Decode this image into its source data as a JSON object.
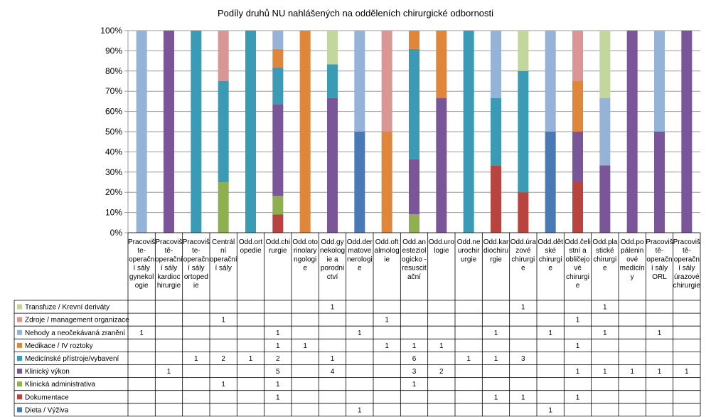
{
  "chart_data": {
    "type": "stacked-bar-100",
    "title": "Podíly druhů NU nahlášených na odděleních chirurgické odbornosti",
    "ylim": [
      0,
      1
    ],
    "y_ticks": [
      "0%",
      "10%",
      "20%",
      "30%",
      "40%",
      "50%",
      "60%",
      "70%",
      "80%",
      "90%",
      "100%"
    ],
    "grid": true,
    "legend": "data table below chart",
    "categories": [
      "Pracoviště-operační sály gynekologie",
      "Pracoviště-operační sály kardiochirurgie",
      "Pracoviště-operační sály ortopedie",
      "Centrální operační sály",
      "Odd.ortopedie",
      "Odd.chirurgie",
      "Odd.otorinolaryngologie",
      "Odd.gynekologie a porodnictví",
      "Odd.dermatovenerologie",
      "Odd.oftalmologie",
      "Odd.anesteziologicko-resuscitační",
      "Odd.urologie",
      "Odd.neurochirurgie",
      "Odd.kardiochirurgie",
      "Odd.úrazové chirurgie",
      "Odd.dětské chirurgie",
      "Odd.čelistní a obličejové chirurgie",
      "Odd.plastické chirurgie",
      "Odd.popáleninové medicíny",
      "Pracoviště-operační sály ORL",
      "Pracoviště-operační sály úrazové chirurgie"
    ],
    "category_lines": [
      [
        "Pracoviš",
        "te-",
        "operačn",
        "í sály",
        "gynekol",
        "ogie"
      ],
      [
        "Pracoviš",
        "tě-",
        "operační",
        "í sály",
        "kardioc",
        "hirurgie"
      ],
      [
        "Pracoviš",
        "te-",
        "operačn",
        "í sály",
        "ortoped",
        "ie"
      ],
      [
        "Centrál",
        "ní",
        "operační",
        "í sály"
      ],
      [
        "Odd.ort",
        "opedie"
      ],
      [
        "Odd.chi",
        "rurgie"
      ],
      [
        "Odd.oto",
        "rinolary",
        "ngologi",
        "e"
      ],
      [
        "Odd.gy",
        "nekolog",
        "ie a",
        "porodni",
        "ctví"
      ],
      [
        "Odd.der",
        "matove",
        "nerologi",
        "e"
      ],
      [
        "Odd.oft",
        "almolog",
        "ie"
      ],
      [
        "Odd.an",
        "esteziol",
        "ogicko -",
        "resuscit",
        "ační"
      ],
      [
        "Odd.uro",
        "logie"
      ],
      [
        "Odd.ne",
        "urochir",
        "urgie"
      ],
      [
        "Odd.kar",
        "diochiru",
        "rgie"
      ],
      [
        "Odd.úra",
        "zové",
        "chirurgi",
        "e"
      ],
      [
        "Odd.dět",
        "ské",
        "chirurgi",
        "e"
      ],
      [
        "Odd.čeli",
        "stní a",
        "obličejo",
        "vé",
        "chirurgi",
        "e"
      ],
      [
        "Odd.pla",
        "stické",
        "chirurgi",
        "e"
      ],
      [
        "Odd.po",
        "pálenin",
        "ové",
        "medicín",
        "y"
      ],
      [
        "Pracoviš",
        "tě-",
        "operačn",
        "í sály",
        "ORL"
      ],
      [
        "Pracoviš",
        "tě-",
        "operačn",
        "í sály",
        "úrazové",
        "chirurgie"
      ]
    ],
    "series": [
      {
        "name": "Transfuze / Krevní deriváty",
        "color": "#c3d69b",
        "values": [
          0,
          0,
          0,
          0,
          0,
          0,
          0,
          1,
          0,
          0,
          0,
          0,
          0,
          0,
          1,
          0,
          0,
          1,
          0,
          0,
          0
        ]
      },
      {
        "name": "Zdroje / management organizace",
        "color": "#d99694",
        "values": [
          0,
          0,
          0,
          1,
          0,
          0,
          0,
          0,
          0,
          1,
          0,
          0,
          0,
          0,
          0,
          0,
          1,
          0,
          0,
          0,
          0
        ]
      },
      {
        "name": "Nehody a neočekávaná zranění",
        "color": "#95b3d7",
        "values": [
          1,
          0,
          0,
          0,
          0,
          1,
          0,
          0,
          1,
          0,
          0,
          0,
          0,
          1,
          0,
          1,
          0,
          1,
          0,
          1,
          0
        ]
      },
      {
        "name": "Medikace / IV roztoky",
        "color": "#e0863a",
        "values": [
          0,
          0,
          0,
          0,
          0,
          1,
          1,
          0,
          0,
          1,
          1,
          1,
          0,
          0,
          0,
          0,
          1,
          0,
          0,
          0,
          0
        ]
      },
      {
        "name": "Medicínské přístroje/vybavení",
        "color": "#3b9bb5",
        "values": [
          0,
          0,
          1,
          2,
          1,
          2,
          0,
          1,
          0,
          0,
          6,
          0,
          1,
          1,
          3,
          0,
          0,
          0,
          0,
          0,
          0
        ]
      },
      {
        "name": "Klinický výkon",
        "color": "#7a5598",
        "values": [
          0,
          1,
          0,
          0,
          0,
          5,
          0,
          4,
          0,
          0,
          3,
          2,
          0,
          0,
          0,
          0,
          1,
          1,
          1,
          1,
          1
        ]
      },
      {
        "name": "Klinická administrativa",
        "color": "#8fb04f",
        "values": [
          0,
          0,
          0,
          1,
          0,
          1,
          0,
          0,
          0,
          0,
          1,
          0,
          0,
          0,
          0,
          0,
          0,
          0,
          0,
          0,
          0
        ]
      },
      {
        "name": "Dokumentace",
        "color": "#b8433f",
        "values": [
          0,
          0,
          0,
          0,
          0,
          1,
          0,
          0,
          0,
          0,
          0,
          0,
          0,
          1,
          1,
          0,
          1,
          0,
          0,
          0,
          0
        ]
      },
      {
        "name": "Dieta / Výživa",
        "color": "#4a7ab5",
        "values": [
          0,
          0,
          0,
          0,
          0,
          0,
          0,
          0,
          1,
          0,
          0,
          0,
          0,
          0,
          0,
          1,
          0,
          0,
          0,
          0,
          0
        ]
      }
    ]
  }
}
